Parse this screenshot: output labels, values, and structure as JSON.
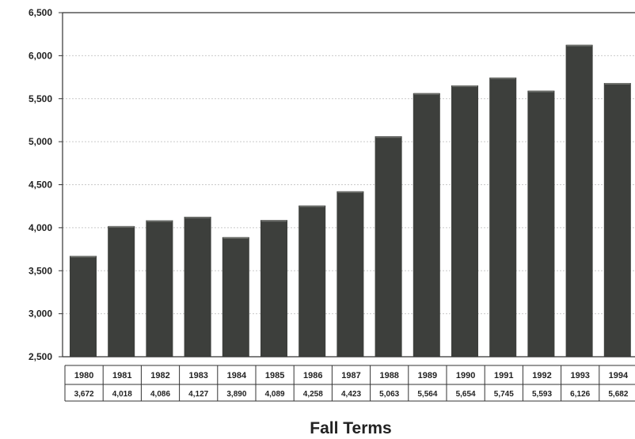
{
  "chart_data": {
    "type": "bar",
    "title": "",
    "xlabel": "Fall Terms",
    "ylabel": "",
    "ylim": [
      2500,
      6500
    ],
    "yticks": [
      2500,
      3000,
      3500,
      4000,
      4500,
      5000,
      5500,
      6000,
      6500
    ],
    "ytick_labels": [
      "2,500",
      "3,000",
      "3,500",
      "4,000",
      "4,500",
      "5,000",
      "5,500",
      "6,000",
      "6,500"
    ],
    "grid": true,
    "legend": "none",
    "categories": [
      "1980",
      "1981",
      "1982",
      "1983",
      "1984",
      "1985",
      "1986",
      "1987",
      "1988",
      "1989",
      "1990",
      "1991",
      "1992",
      "1993",
      "1994"
    ],
    "values": [
      3672,
      4018,
      4086,
      4127,
      3890,
      4089,
      4258,
      4423,
      5063,
      5564,
      5654,
      5745,
      5593,
      6126,
      5682
    ],
    "value_labels": [
      "3,672",
      "4,018",
      "4,086",
      "4,127",
      "3,890",
      "4,089",
      "4,258",
      "4,423",
      "5,063",
      "5,564",
      "5,654",
      "5,745",
      "5,593",
      "6,126",
      "5,682"
    ],
    "bar_color": "#3d3f3c",
    "bar_highlight": "#6a6c68"
  }
}
